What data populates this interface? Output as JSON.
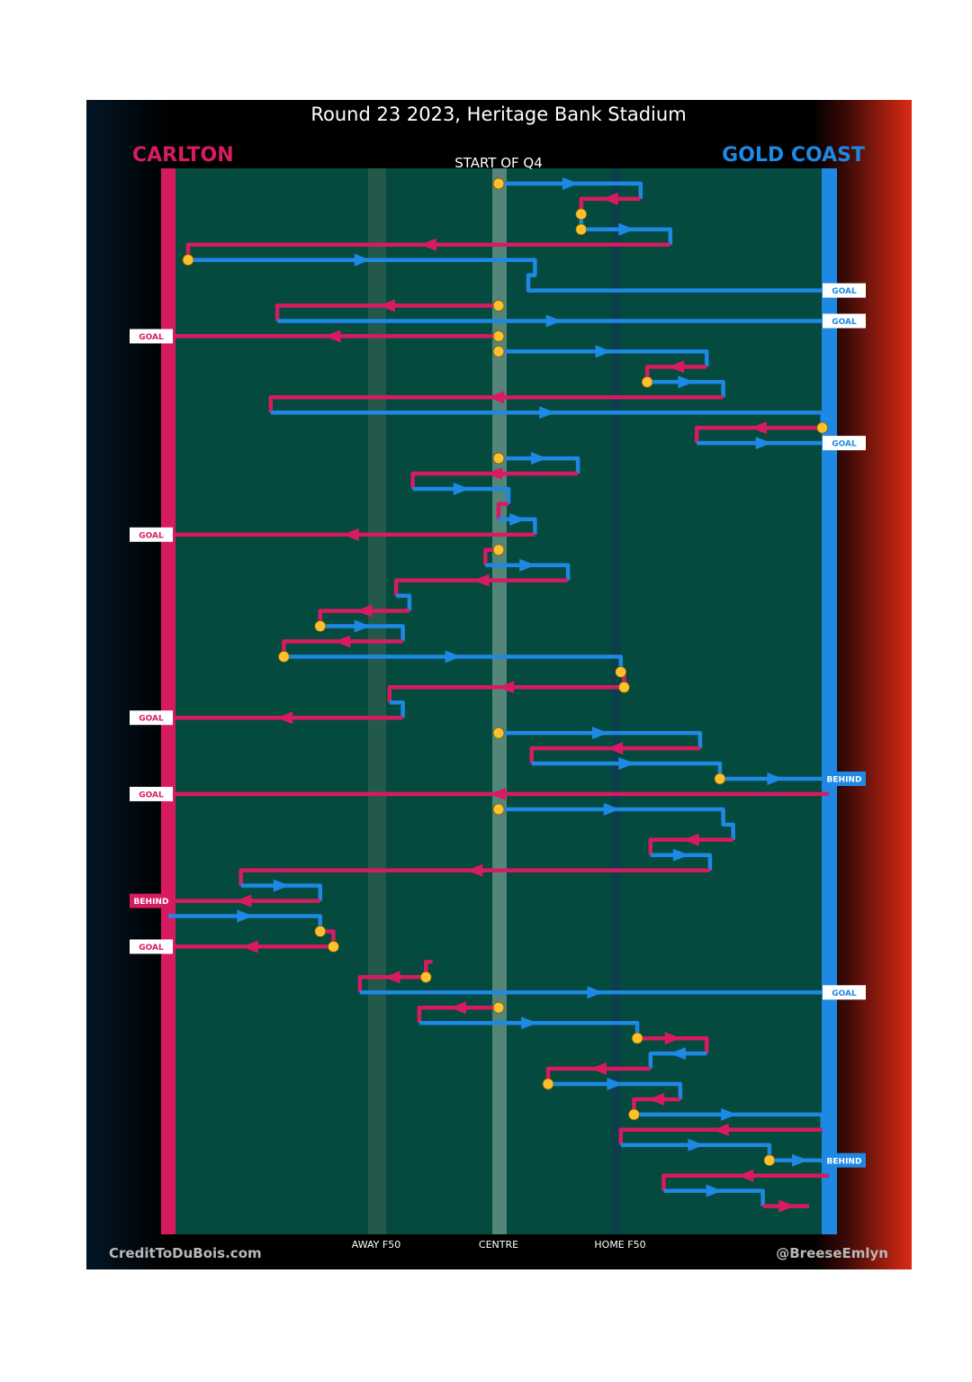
{
  "title": "Round 23 2023, Heritage Bank Stadium",
  "teams": {
    "left": {
      "name": "CARLTON",
      "color": "#d81b60"
    },
    "right": {
      "name": "GOLD COAST",
      "color": "#1e88e5"
    }
  },
  "period_label": "START OF Q4",
  "credits": {
    "left": "CreditToDuBois.com",
    "right": "@BreeseEmlyn"
  },
  "colors": {
    "field": "#044a3e",
    "carlton": "#d81b60",
    "goldcoast": "#1e88e5",
    "marker": "#fbc02d"
  },
  "chart_data": {
    "type": "line",
    "description_units": "x = field position from Carlton goal (0) to Gold Coast goal (100); y = chain step index",
    "x_axis": {
      "range": [
        0,
        100
      ],
      "ticks": [
        {
          "value": 31,
          "label": "AWAY F50"
        },
        {
          "value": 50,
          "label": "CENTRE"
        },
        {
          "value": 68.5,
          "label": "HOME F50"
        }
      ]
    },
    "y_axis": {
      "range": [
        0,
        69.5
      ]
    },
    "paths": [
      {
        "team": "GC",
        "points": [
          [
            50,
            1
          ],
          [
            71.5,
            1
          ],
          [
            71.5,
            2
          ]
        ]
      },
      {
        "team": "CAR",
        "points": [
          [
            71.5,
            2
          ],
          [
            62.5,
            2
          ],
          [
            62.5,
            3
          ]
        ]
      },
      {
        "team": "GC",
        "points": [
          [
            62.5,
            3
          ],
          [
            62.5,
            4
          ],
          [
            76,
            4
          ],
          [
            76,
            5
          ]
        ]
      },
      {
        "team": "CAR",
        "points": [
          [
            76,
            5
          ],
          [
            3,
            5
          ],
          [
            3,
            6
          ]
        ]
      },
      {
        "team": "GC",
        "points": [
          [
            3,
            6
          ],
          [
            55.5,
            6
          ],
          [
            55.5,
            7
          ],
          [
            54.5,
            7
          ],
          [
            54.5,
            8
          ],
          [
            100,
            8
          ]
        ]
      },
      {
        "team": "CAR",
        "points": [
          [
            50,
            9
          ],
          [
            16.5,
            9
          ],
          [
            16.5,
            10
          ]
        ]
      },
      {
        "team": "GC",
        "points": [
          [
            16.5,
            10
          ],
          [
            100,
            10
          ]
        ]
      },
      {
        "team": "CAR",
        "points": [
          [
            50,
            11
          ],
          [
            0,
            11
          ]
        ]
      },
      {
        "team": "GC",
        "points": [
          [
            50,
            12
          ],
          [
            81.5,
            12
          ],
          [
            81.5,
            13
          ]
        ]
      },
      {
        "team": "CAR",
        "points": [
          [
            81.5,
            13
          ],
          [
            72.5,
            13
          ],
          [
            72.5,
            14
          ]
        ]
      },
      {
        "team": "GC",
        "points": [
          [
            72.5,
            14
          ],
          [
            84,
            14
          ],
          [
            84,
            15
          ]
        ]
      },
      {
        "team": "CAR",
        "points": [
          [
            84,
            15
          ],
          [
            15.5,
            15
          ],
          [
            15.5,
            16
          ]
        ]
      },
      {
        "team": "GC",
        "points": [
          [
            15.5,
            16
          ],
          [
            99,
            16
          ],
          [
            99,
            17
          ]
        ]
      },
      {
        "team": "CAR",
        "points": [
          [
            99,
            17
          ],
          [
            80,
            17
          ],
          [
            80,
            18
          ]
        ]
      },
      {
        "team": "GC",
        "points": [
          [
            80,
            18
          ],
          [
            100,
            18
          ]
        ]
      },
      {
        "team": "GC",
        "points": [
          [
            50,
            19
          ],
          [
            62,
            19
          ],
          [
            62,
            20
          ]
        ]
      },
      {
        "team": "CAR",
        "points": [
          [
            62,
            20
          ],
          [
            37,
            20
          ],
          [
            37,
            21
          ]
        ]
      },
      {
        "team": "GC",
        "points": [
          [
            37,
            21
          ],
          [
            51.5,
            21
          ],
          [
            51.5,
            22
          ]
        ]
      },
      {
        "team": "CAR",
        "points": [
          [
            51.5,
            22
          ],
          [
            50,
            22
          ],
          [
            50,
            23
          ]
        ]
      },
      {
        "team": "GC",
        "points": [
          [
            50,
            23
          ],
          [
            55.5,
            23
          ],
          [
            55.5,
            24
          ]
        ]
      },
      {
        "team": "CAR",
        "points": [
          [
            55.5,
            24
          ],
          [
            0,
            24
          ]
        ]
      },
      {
        "team": "CAR",
        "points": [
          [
            50,
            25
          ],
          [
            48,
            25
          ],
          [
            48,
            26
          ]
        ]
      },
      {
        "team": "GC",
        "points": [
          [
            48,
            26
          ],
          [
            60.5,
            26
          ],
          [
            60.5,
            27
          ]
        ]
      },
      {
        "team": "CAR",
        "points": [
          [
            60.5,
            27
          ],
          [
            34.5,
            27
          ],
          [
            34.5,
            28
          ]
        ]
      },
      {
        "team": "GC",
        "points": [
          [
            34.5,
            28
          ],
          [
            36.5,
            28
          ],
          [
            36.5,
            29
          ]
        ]
      },
      {
        "team": "CAR",
        "points": [
          [
            36.5,
            29
          ],
          [
            23,
            29
          ],
          [
            23,
            30
          ]
        ]
      },
      {
        "team": "GC",
        "points": [
          [
            23,
            30
          ],
          [
            35.5,
            30
          ],
          [
            35.5,
            31
          ]
        ]
      },
      {
        "team": "CAR",
        "points": [
          [
            35.5,
            31
          ],
          [
            17.5,
            31
          ],
          [
            17.5,
            32
          ]
        ]
      },
      {
        "team": "GC",
        "points": [
          [
            17.5,
            32
          ],
          [
            68.5,
            32
          ],
          [
            68.5,
            33
          ]
        ]
      },
      {
        "team": "CAR",
        "points": [
          [
            68.5,
            33
          ],
          [
            69,
            33
          ],
          [
            69,
            34
          ]
        ]
      },
      {
        "team": "CAR",
        "points": [
          [
            69,
            34
          ],
          [
            33.5,
            34
          ],
          [
            33.5,
            35
          ]
        ]
      },
      {
        "team": "GC",
        "points": [
          [
            33.5,
            35
          ],
          [
            35.5,
            35
          ],
          [
            35.5,
            36
          ]
        ]
      },
      {
        "team": "CAR",
        "points": [
          [
            35.5,
            36
          ],
          [
            0,
            36
          ]
        ]
      },
      {
        "team": "GC",
        "points": [
          [
            50,
            37
          ],
          [
            80.5,
            37
          ],
          [
            80.5,
            38
          ]
        ]
      },
      {
        "team": "CAR",
        "points": [
          [
            80.5,
            38
          ],
          [
            55,
            38
          ],
          [
            55,
            39
          ]
        ]
      },
      {
        "team": "GC",
        "points": [
          [
            55,
            39
          ],
          [
            83.5,
            39
          ],
          [
            83.5,
            40
          ]
        ]
      },
      {
        "team": "GC",
        "points": [
          [
            83.5,
            40
          ],
          [
            100,
            40
          ]
        ]
      },
      {
        "team": "CAR",
        "points": [
          [
            100,
            41
          ],
          [
            0,
            41
          ]
        ]
      },
      {
        "team": "GC",
        "points": [
          [
            50,
            42
          ],
          [
            84,
            42
          ],
          [
            84,
            43
          ],
          [
            85.5,
            43
          ],
          [
            85.5,
            44
          ]
        ]
      },
      {
        "team": "CAR",
        "points": [
          [
            85.5,
            44
          ],
          [
            73,
            44
          ],
          [
            73,
            45
          ]
        ]
      },
      {
        "team": "GC",
        "points": [
          [
            73,
            45
          ],
          [
            82,
            45
          ],
          [
            82,
            46
          ]
        ]
      },
      {
        "team": "CAR",
        "points": [
          [
            82,
            46
          ],
          [
            11,
            46
          ],
          [
            11,
            47
          ]
        ]
      },
      {
        "team": "GC",
        "points": [
          [
            11,
            47
          ],
          [
            23,
            47
          ],
          [
            23,
            48
          ]
        ]
      },
      {
        "team": "CAR",
        "points": [
          [
            23,
            48
          ],
          [
            0,
            48
          ]
        ]
      },
      {
        "team": "GC",
        "points": [
          [
            0,
            49
          ],
          [
            23,
            49
          ],
          [
            23,
            50
          ]
        ]
      },
      {
        "team": "CAR",
        "points": [
          [
            23,
            50
          ],
          [
            25,
            50
          ],
          [
            25,
            51
          ]
        ]
      },
      {
        "team": "CAR",
        "points": [
          [
            25,
            51
          ],
          [
            0,
            51
          ]
        ]
      },
      {
        "team": "CAR",
        "points": [
          [
            40,
            52
          ],
          [
            39,
            52
          ],
          [
            39,
            53
          ]
        ]
      },
      {
        "team": "CAR",
        "points": [
          [
            39,
            53
          ],
          [
            29,
            53
          ],
          [
            29,
            54
          ]
        ]
      },
      {
        "team": "GC",
        "points": [
          [
            29,
            54
          ],
          [
            100,
            54
          ]
        ]
      },
      {
        "team": "CAR",
        "points": [
          [
            50,
            55
          ],
          [
            38,
            55
          ],
          [
            38,
            56
          ]
        ]
      },
      {
        "team": "GC",
        "points": [
          [
            38,
            56
          ],
          [
            71,
            56
          ],
          [
            71,
            57
          ]
        ]
      },
      {
        "team": "CAR",
        "points": [
          [
            71,
            57
          ],
          [
            81.5,
            57
          ],
          [
            81.5,
            58
          ]
        ]
      },
      {
        "team": "GC",
        "points": [
          [
            81.5,
            58
          ],
          [
            73,
            58
          ],
          [
            73,
            59
          ]
        ]
      },
      {
        "team": "CAR",
        "points": [
          [
            73,
            59
          ],
          [
            57.5,
            59
          ],
          [
            57.5,
            60
          ]
        ]
      },
      {
        "team": "GC",
        "points": [
          [
            57.5,
            60
          ],
          [
            77.5,
            60
          ],
          [
            77.5,
            61
          ]
        ]
      },
      {
        "team": "CAR",
        "points": [
          [
            77.5,
            61
          ],
          [
            70.5,
            61
          ],
          [
            70.5,
            62
          ]
        ]
      },
      {
        "team": "GC",
        "points": [
          [
            70.5,
            62
          ],
          [
            99,
            62
          ],
          [
            99,
            63
          ]
        ]
      },
      {
        "team": "CAR",
        "points": [
          [
            99,
            63
          ],
          [
            68.5,
            63
          ],
          [
            68.5,
            64
          ]
        ]
      },
      {
        "team": "GC",
        "points": [
          [
            68.5,
            64
          ],
          [
            91,
            64
          ],
          [
            91,
            65
          ]
        ]
      },
      {
        "team": "GC",
        "points": [
          [
            91,
            65
          ],
          [
            100,
            65
          ]
        ]
      },
      {
        "team": "CAR",
        "points": [
          [
            100,
            66
          ],
          [
            75,
            66
          ],
          [
            75,
            67
          ]
        ]
      },
      {
        "team": "GC",
        "points": [
          [
            75,
            67
          ],
          [
            90,
            67
          ],
          [
            90,
            68
          ]
        ]
      },
      {
        "team": "CAR",
        "points": [
          [
            90,
            68
          ],
          [
            97,
            68
          ]
        ]
      }
    ],
    "possession_changes": [
      [
        50,
        1
      ],
      [
        62.5,
        3
      ],
      [
        62.5,
        4
      ],
      [
        3,
        6
      ],
      [
        50,
        9
      ],
      [
        50,
        11
      ],
      [
        50,
        12
      ],
      [
        72.5,
        14
      ],
      [
        99,
        17
      ],
      [
        50,
        19
      ],
      [
        50,
        25
      ],
      [
        23,
        30
      ],
      [
        17.5,
        32
      ],
      [
        68.5,
        33
      ],
      [
        69,
        34
      ],
      [
        50,
        37
      ],
      [
        83.5,
        40
      ],
      [
        50,
        42
      ],
      [
        23,
        50
      ],
      [
        25,
        51
      ],
      [
        39,
        53
      ],
      [
        50,
        55
      ],
      [
        71,
        57
      ],
      [
        57.5,
        60
      ],
      [
        70.5,
        62
      ],
      [
        91,
        65
      ]
    ],
    "outcomes": [
      {
        "label": "GOAL",
        "team": "GC",
        "y": 8
      },
      {
        "label": "GOAL",
        "team": "GC",
        "y": 10
      },
      {
        "label": "GOAL",
        "team": "CAR",
        "y": 11
      },
      {
        "label": "GOAL",
        "team": "GC",
        "y": 18
      },
      {
        "label": "GOAL",
        "team": "CAR",
        "y": 24
      },
      {
        "label": "GOAL",
        "team": "CAR",
        "y": 36
      },
      {
        "label": "BEHIND",
        "team": "GC",
        "y": 40
      },
      {
        "label": "GOAL",
        "team": "CAR",
        "y": 41
      },
      {
        "label": "BEHIND",
        "team": "CAR",
        "y": 48
      },
      {
        "label": "GOAL",
        "team": "CAR",
        "y": 51
      },
      {
        "label": "GOAL",
        "team": "GC",
        "y": 54
      },
      {
        "label": "BEHIND",
        "team": "GC",
        "y": 65
      }
    ]
  }
}
